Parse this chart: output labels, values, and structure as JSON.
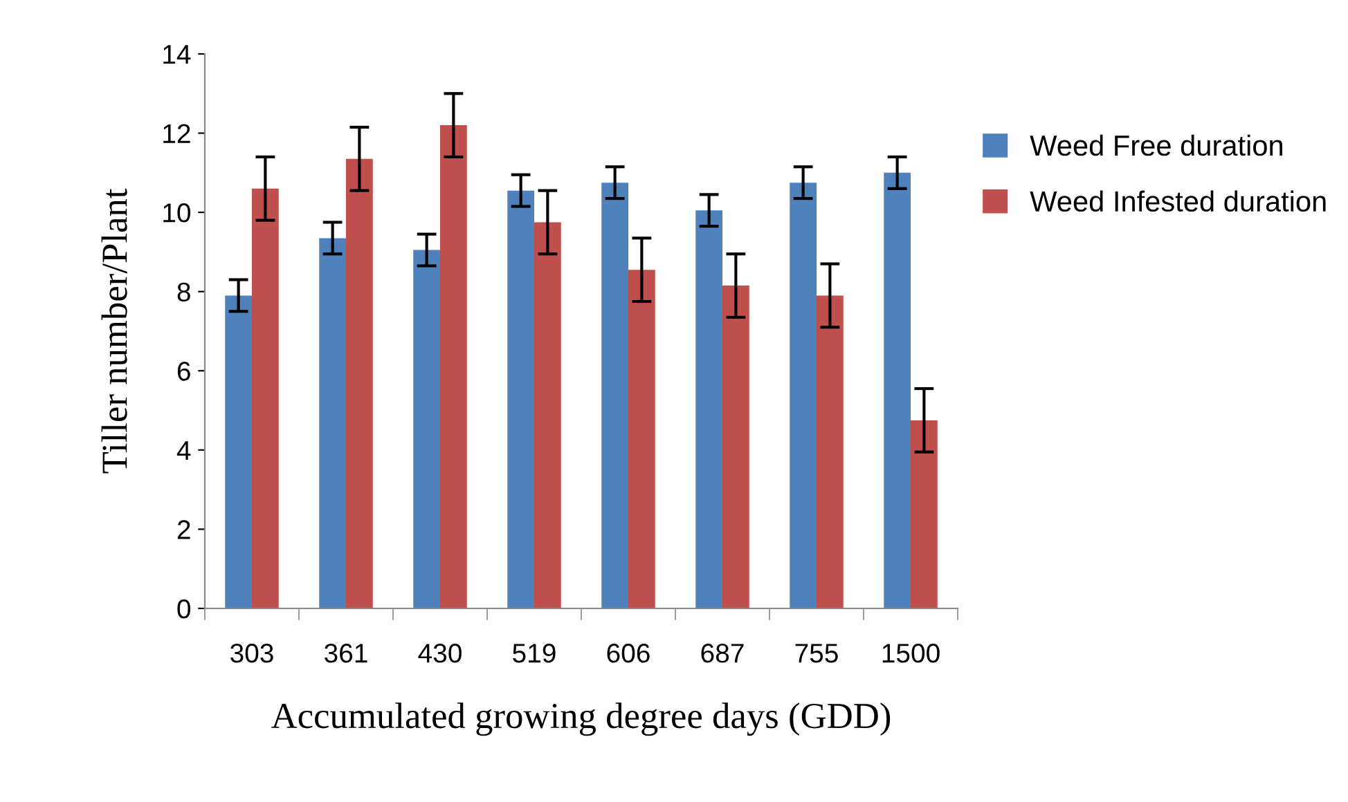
{
  "chart_data": {
    "type": "bar",
    "xlabel": "Accumulated growing degree days (GDD)",
    "ylabel": "Tiller number/Plant",
    "categories": [
      "303",
      "361",
      "430",
      "519",
      "606",
      "687",
      "755",
      "1500"
    ],
    "series": [
      {
        "name": "Weed Free duration",
        "color": "#4f81bd",
        "values": [
          7.9,
          9.35,
          9.05,
          10.55,
          10.75,
          10.05,
          10.75,
          11.0
        ],
        "errors": [
          0.4,
          0.4,
          0.4,
          0.4,
          0.4,
          0.4,
          0.4,
          0.4
        ]
      },
      {
        "name": "Weed Infested duration",
        "color": "#c0504d",
        "values": [
          10.6,
          11.35,
          12.2,
          9.75,
          8.55,
          8.15,
          7.9,
          4.75
        ],
        "errors": [
          0.8,
          0.8,
          0.8,
          0.8,
          0.8,
          0.8,
          0.8,
          0.8
        ]
      }
    ],
    "ylim": [
      0,
      14
    ],
    "yticks": [
      0,
      2,
      4,
      6,
      8,
      10,
      12,
      14
    ],
    "grid": false,
    "legend": "right"
  }
}
